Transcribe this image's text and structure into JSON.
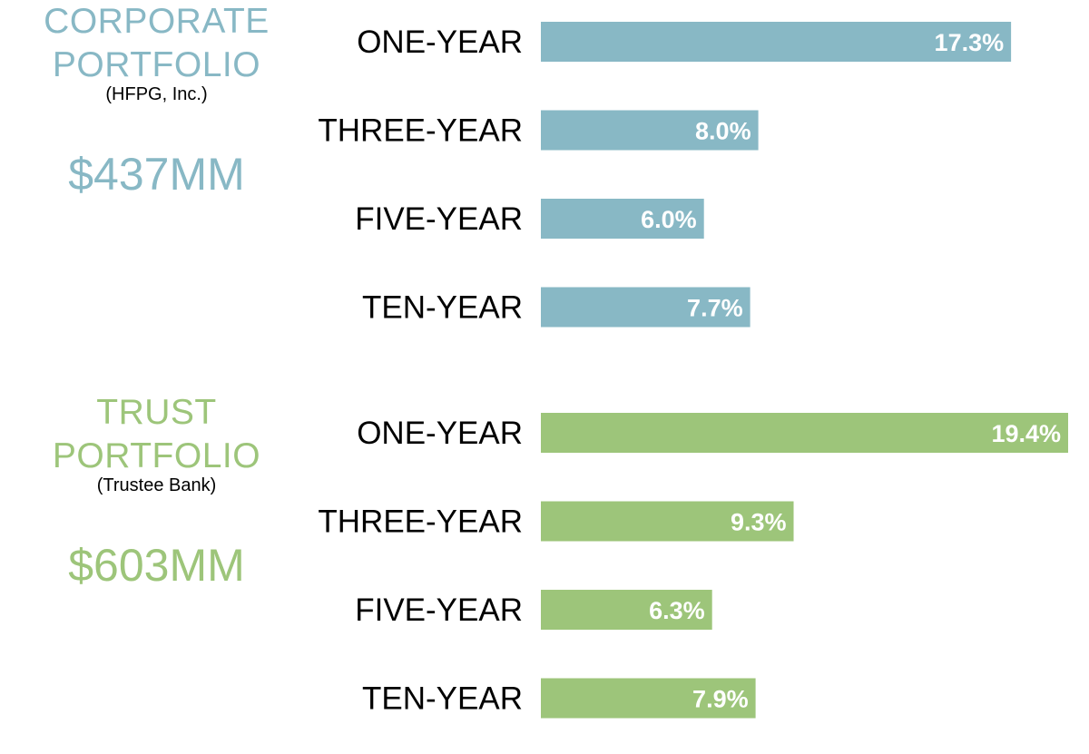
{
  "chart_data": [
    {
      "type": "bar",
      "orientation": "horizontal",
      "title_lines": [
        "CORPORATE",
        "PORTFOLIO"
      ],
      "subtitle": "(HFPG, Inc.)",
      "amount": "$437MM",
      "color": "#88b8c5",
      "categories": [
        "ONE-YEAR",
        "THREE-YEAR",
        "FIVE-YEAR",
        "TEN-YEAR"
      ],
      "values": [
        17.3,
        8.0,
        6.0,
        7.7
      ],
      "value_labels": [
        "17.3%",
        "8.0%",
        "6.0%",
        "7.7%"
      ],
      "xlim": [
        0,
        19.5
      ],
      "grid": false,
      "axes_visible": false
    },
    {
      "type": "bar",
      "orientation": "horizontal",
      "title_lines": [
        "TRUST",
        "PORTFOLIO"
      ],
      "subtitle": "(Trustee Bank)",
      "amount": "$603MM",
      "color": "#9dc57a",
      "categories": [
        "ONE-YEAR",
        "THREE-YEAR",
        "FIVE-YEAR",
        "TEN-YEAR"
      ],
      "values": [
        19.4,
        9.3,
        6.3,
        7.9
      ],
      "value_labels": [
        "19.4%",
        "9.3%",
        "6.3%",
        "7.9%"
      ],
      "xlim": [
        0,
        19.5
      ],
      "grid": false,
      "axes_visible": false
    }
  ]
}
